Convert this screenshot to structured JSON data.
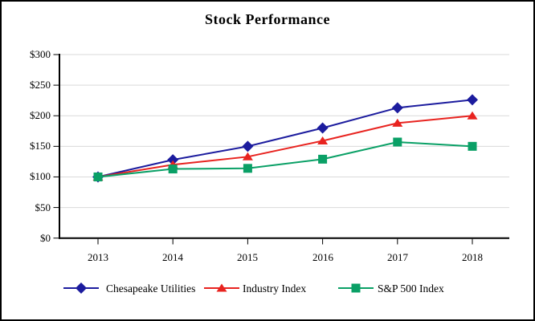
{
  "title": "Stock Performance",
  "colors": {
    "chesapeake": "#1c1c9e",
    "industry": "#e8231f",
    "sp500": "#0aa066",
    "grid": "#d9d9d9",
    "axis": "#000000"
  },
  "chart_data": {
    "type": "line",
    "title": "Stock Performance",
    "x": [
      2013,
      2014,
      2015,
      2016,
      2017,
      2018
    ],
    "series": [
      {
        "name": "Chesapeake Utilities",
        "marker": "diamond",
        "color": "#1c1c9e",
        "values": [
          100,
          128,
          150,
          180,
          213,
          226
        ]
      },
      {
        "name": "Industry Index",
        "marker": "triangle",
        "color": "#e8231f",
        "values": [
          100,
          120,
          133,
          159,
          188,
          200
        ]
      },
      {
        "name": "S&P 500 Index",
        "marker": "square",
        "color": "#0aa066",
        "values": [
          100,
          113,
          114,
          129,
          157,
          150
        ]
      }
    ],
    "ylim": [
      0,
      300
    ],
    "ytick_step": 50,
    "ytick_labels": [
      "$0",
      "$50",
      "$100",
      "$150",
      "$200",
      "$250",
      "$300"
    ],
    "grid": true,
    "legend_position": "bottom"
  }
}
